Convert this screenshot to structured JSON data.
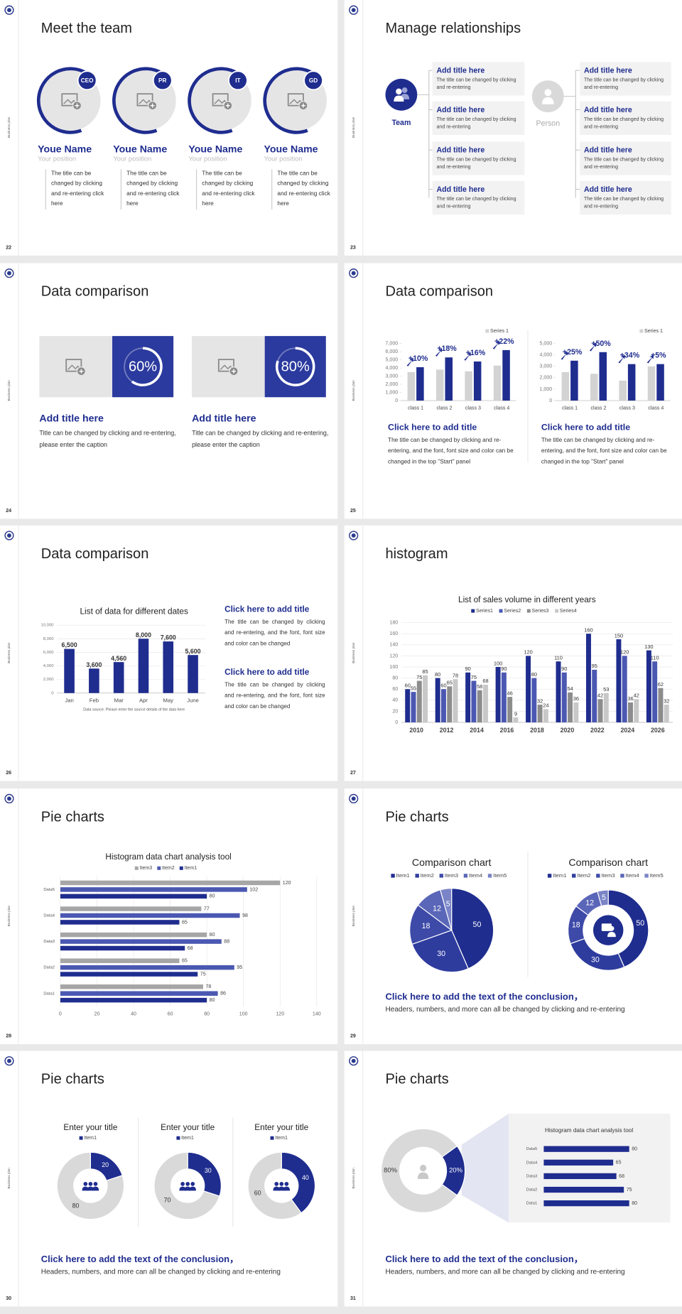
{
  "slides": [
    {
      "number": "22",
      "side_label": "Business plan",
      "title": "Meet the team",
      "members": [
        {
          "badge": "CEO",
          "name": "Youe Name",
          "position": "Your position",
          "text": "The title can be changed by clicking and re-entering click here"
        },
        {
          "badge": "PR",
          "name": "Youe Name",
          "position": "Your position",
          "text": "The title can be changed by clicking and re-entering click here"
        },
        {
          "badge": "IT",
          "name": "Youe Name",
          "position": "Your position",
          "text": "The title can be changed by clicking and re-entering click here"
        },
        {
          "badge": "GD",
          "name": "Youe Name",
          "position": "Your position",
          "text": "The title can be changed by clicking and re-entering click here"
        }
      ]
    },
    {
      "number": "23",
      "side_label": "Business plan",
      "title": "Manage relationships",
      "team_label": "Team",
      "person_label": "Person",
      "left_boxes": [
        {
          "title": "Add title here",
          "text": "The title can be changed by clicking and re-entering"
        },
        {
          "title": "Add title here",
          "text": "The title can be changed by clicking and re-entering"
        },
        {
          "title": "Add title here",
          "text": "The title can be changed by clicking and re-entering"
        },
        {
          "title": "Add title here",
          "text": "The title can be changed by clicking and re-entering"
        }
      ],
      "right_boxes": [
        {
          "title": "Add title here",
          "text": "The title can be changed by clicking and re-entering"
        },
        {
          "title": "Add title here",
          "text": "The title can be changed by clicking and re-entering"
        },
        {
          "title": "Add title here",
          "text": "The title can be changed by clicking and re-entering"
        },
        {
          "title": "Add title here",
          "text": "The title can be changed by clicking and re-entering"
        }
      ]
    },
    {
      "number": "24",
      "side_label": "Business plan",
      "title": "Data comparison",
      "cards": [
        {
          "percent": 60,
          "percent_label": "60%",
          "title": "Add title here",
          "text": "Title can be changed by clicking and re-entering, please enter the caption"
        },
        {
          "percent": 80,
          "percent_label": "80%",
          "title": "Add title here",
          "text": "Title can be changed by clicking and re-entering, please enter the caption"
        }
      ]
    },
    {
      "number": "25",
      "side_label": "Business plan",
      "title": "Data comparison",
      "panels": [
        {
          "chart": {
            "type": "bar",
            "categories": [
              "class 1",
              "class 2",
              "class 3",
              "class 4"
            ],
            "series": [
              {
                "name": "Series 1",
                "color": "#d3d3d3",
                "values": [
                  3500,
                  3800,
                  3600,
                  4300
                ]
              },
              {
                "color": "#1f2d8f",
                "values": [
                  4100,
                  5300,
                  4800,
                  6200
                ]
              }
            ],
            "annotations": [
              "+10%",
              "+18%",
              "+16%",
              "+22%"
            ],
            "ylim": [
              0,
              7000
            ],
            "yticks": [
              0,
              {
                "value": 1000,
                "label": "1,000"
              },
              {
                "value": 2000,
                "label": "2,000"
              },
              {
                "value": 3000,
                "label": "3,000"
              },
              {
                "value": 4000,
                "label": "4,000"
              },
              {
                "value": 5000,
                "label": "5,000"
              },
              {
                "value": 6000,
                "label": "6,000"
              },
              {
                "value": 7000,
                "label": "7,000"
              }
            ]
          },
          "heading": "Click here to add title",
          "text": "The title can be changed by clicking and re-entering, and the font, font size and color can be changed in the top \"Start\" panel"
        },
        {
          "chart": {
            "type": "bar",
            "categories": [
              "class 1",
              "class 2",
              "class 3",
              "class 4"
            ],
            "series": [
              {
                "name": "Series 1",
                "color": "#d3d3d3",
                "values": [
                  2500,
                  2350,
                  1750,
                  3000
                ]
              },
              {
                "color": "#1f2d8f",
                "values": [
                  3500,
                  4250,
                  3200,
                  3200
                ]
              }
            ],
            "annotations": [
              "+25%",
              "+50%",
              "+34%",
              "+5%"
            ],
            "ylim": [
              0,
              5000
            ],
            "yticks": [
              0,
              {
                "value": 1000,
                "label": "1,000"
              },
              {
                "value": 2000,
                "label": "2,000"
              },
              {
                "value": 3000,
                "label": "3,000"
              },
              {
                "value": 4000,
                "label": "4,000"
              },
              {
                "value": 5000,
                "label": "5,000"
              }
            ]
          },
          "heading": "Click here to add title",
          "text": "The title can be changed by clicking and re-entering, and the font, font size and color can be changed in the top \"Start\" panel"
        }
      ]
    },
    {
      "number": "26",
      "side_label": "Business plan",
      "title": "Data comparison",
      "chart": {
        "type": "bar",
        "title": "List of data for different dates",
        "categories": [
          "Jan",
          "Feb",
          "Mar",
          "Apr",
          "May",
          "June"
        ],
        "values": [
          6500,
          3600,
          4560,
          8000,
          7600,
          5600
        ],
        "value_labels": [
          "6,500",
          "3,600",
          "4,560",
          "8,000",
          "7,600",
          "5,600"
        ],
        "color": "#1f2d8f",
        "ylim": [
          0,
          10000
        ],
        "yticks": [
          0,
          {
            "value": 2000,
            "label": "2,000"
          },
          {
            "value": 4000,
            "label": "4,000"
          },
          {
            "value": 6000,
            "label": "6,000"
          },
          {
            "value": 8000,
            "label": "8,000"
          },
          {
            "value": 10000,
            "label": "10,000"
          }
        ],
        "grid": true,
        "note": "Data source: Please enter the source details of the data here"
      },
      "blocks": [
        {
          "heading": "Click here to add title",
          "text": "The title can be changed by clicking and re-entering, and the font, font size and color can be changed"
        },
        {
          "heading": "Click here to add title",
          "text": "The title can be changed by clicking and re-entering, and the font, font size and color can be changed"
        }
      ]
    },
    {
      "number": "27",
      "side_label": "Business plan",
      "title": "histogram",
      "chart": {
        "type": "bar",
        "title": "List of sales volume in different years",
        "categories": [
          "2010",
          "2012",
          "2014",
          "2016",
          "2018",
          "2020",
          "2022",
          "2024",
          "2026"
        ],
        "series": [
          {
            "name": "Series1",
            "color": "#1f2d8f",
            "values": [
              60,
              80,
              90,
              100,
              120,
              110,
              160,
              150,
              130
            ]
          },
          {
            "name": "Series2",
            "color": "#4b58b2",
            "values": [
              55,
              60,
              75,
              90,
              80,
              90,
              95,
              120,
              110
            ]
          },
          {
            "name": "Series3",
            "color": "#8c8c8c",
            "values": [
              75,
              65,
              58,
              46,
              32,
              54,
              42,
              36,
              62
            ]
          },
          {
            "name": "Series4",
            "color": "#c8c8c8",
            "values": [
              85,
              78,
              68,
              9,
              24,
              36,
              53,
              42,
              32
            ]
          }
        ],
        "ylim": [
          0,
          180
        ],
        "yticks": [
          0,
          20,
          40,
          60,
          80,
          100,
          120,
          140,
          160,
          180
        ],
        "grid": true,
        "data_labels": true
      }
    },
    {
      "number": "28",
      "side_label": "Business plan",
      "title": "Pie charts",
      "chart": {
        "type": "bar",
        "orientation": "horizontal",
        "title": "Histogram data chart analysis tool",
        "categories": [
          "Data1",
          "Data2",
          "Data3",
          "Data4",
          "Data5"
        ],
        "series": [
          {
            "name": "Item3",
            "color": "#a6a6a6",
            "values": [
              78,
              65,
              80,
              77,
              120
            ]
          },
          {
            "name": "Item2",
            "color": "#4b58b2",
            "values": [
              86,
              95,
              88,
              98,
              102
            ]
          },
          {
            "name": "Item1",
            "color": "#1f2d8f",
            "values": [
              80,
              75,
              68,
              65,
              80
            ]
          }
        ],
        "xlim": [
          0,
          140
        ],
        "xticks": [
          0,
          20,
          40,
          60,
          80,
          100,
          120,
          140
        ],
        "grid": true,
        "data_labels": true
      }
    },
    {
      "number": "29",
      "side_label": "Business plan",
      "title": "Pie charts",
      "charts": [
        {
          "type": "pie",
          "title": "Comparison chart",
          "categories": [
            "Item1",
            "Item2",
            "Item3",
            "Item4",
            "Item5"
          ],
          "values": [
            50,
            30,
            18,
            12,
            5
          ],
          "colors": [
            "#1f2d8f",
            "#2e3c9e",
            "#3d4aa8",
            "#5a66b8",
            "#7a84c6"
          ]
        },
        {
          "type": "donut",
          "title": "Comparison chart",
          "categories": [
            "Item1",
            "Item2",
            "Item3",
            "Item4",
            "Item5"
          ],
          "values": [
            50,
            30,
            18,
            12,
            5
          ],
          "colors": [
            "#1f2d8f",
            "#2e3c9e",
            "#3d4aa8",
            "#5a66b8",
            "#7a84c6"
          ]
        }
      ],
      "conclusion": {
        "heading": "Click here to add the text of the conclusion，",
        "text": "Headers, numbers, and more can all be changed by clicking and re-entering"
      }
    },
    {
      "number": "30",
      "side_label": "Business plan",
      "title": "Pie charts",
      "charts": [
        {
          "type": "donut",
          "title": "Enter your title",
          "categories": [
            "Item1",
            null
          ],
          "values": [
            20,
            80
          ],
          "colors": [
            "#1f2d8f",
            "#d9d9d9"
          ]
        },
        {
          "type": "donut",
          "title": "Enter your title",
          "categories": [
            "Item1",
            null
          ],
          "values": [
            30,
            70
          ],
          "colors": [
            "#1f2d8f",
            "#d9d9d9"
          ]
        },
        {
          "type": "donut",
          "title": "Enter your title",
          "categories": [
            "Item1",
            null
          ],
          "values": [
            40,
            60
          ],
          "colors": [
            "#1f2d8f",
            "#d9d9d9"
          ]
        }
      ],
      "conclusion": {
        "heading": "Click here to add the text of the conclusion，",
        "text": "Headers, numbers, and more can all be changed by clicking and re-entering"
      }
    },
    {
      "number": "31",
      "side_label": "Business plan",
      "title": "Pie charts",
      "charts": [
        {
          "type": "donut",
          "values": [
            20,
            80
          ],
          "value_labels": [
            "20%",
            "80%"
          ],
          "colors": [
            "#1f2d8f",
            "#d9d9d9"
          ]
        },
        {
          "type": "bar",
          "orientation": "horizontal",
          "title": "Histogram data chart analysis tool",
          "categories": [
            "Data1",
            "Data2",
            "Data3",
            "Data4",
            "Data5"
          ],
          "values": [
            80,
            75,
            68,
            65,
            80
          ],
          "color": "#1f2d8f",
          "xlim": [
            0,
            100
          ],
          "data_labels": true
        }
      ],
      "conclusion": {
        "heading": "Click here to add the text of the conclusion，",
        "text": "Headers, numbers, and more can all be changed by clicking and re-entering"
      }
    }
  ]
}
